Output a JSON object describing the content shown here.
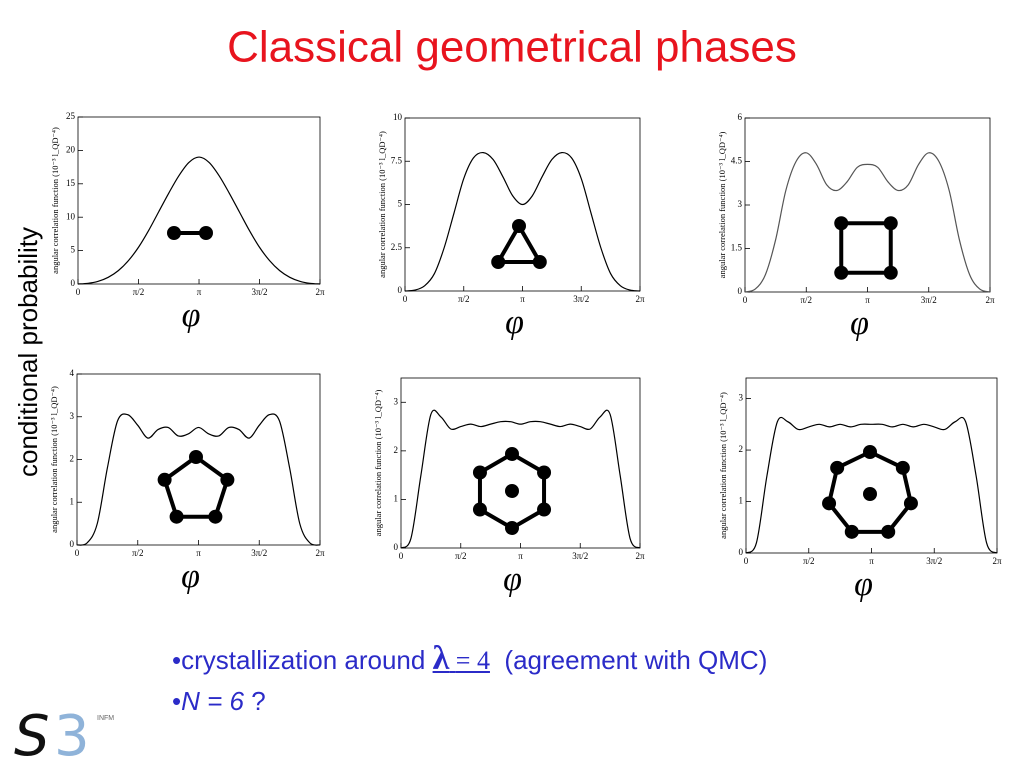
{
  "slide": {
    "title": "Classical geometrical phases",
    "side_label": "conditional probability",
    "bullets": [
      {
        "bullet": "•",
        "text": "crystallization around",
        "lambda": "λ",
        "eq": "= 4",
        "note": "(agreement with QMC)"
      },
      {
        "bullet": "•",
        "text": "N = 6",
        "note": "?"
      }
    ],
    "logo": {
      "s": "S",
      "three": "3",
      "org": "INFM"
    }
  },
  "chart_data": [
    {
      "type": "line",
      "xlabel": "φ",
      "ylabel": "angular correlation function  (10⁻³ l_QD⁻⁴)",
      "x": [
        0,
        0.262,
        0.524,
        0.785,
        1.047,
        1.309,
        1.571,
        1.833,
        2.094,
        2.356,
        2.618,
        2.88,
        3.142,
        3.403,
        3.665,
        3.927,
        4.189,
        4.451,
        4.712,
        4.974,
        5.236,
        5.498,
        5.76,
        6.021,
        6.283
      ],
      "values": [
        0,
        0.1,
        0.4,
        1.0,
        2.0,
        3.5,
        5.5,
        8,
        10.8,
        13.6,
        16.2,
        18.2,
        19,
        18.2,
        16.2,
        13.6,
        10.8,
        8,
        5.5,
        3.5,
        2.0,
        1.0,
        0.4,
        0.1,
        0
      ],
      "color": "#000000",
      "xlim": [
        0,
        6.283
      ],
      "xticks": [
        0,
        {
          "value": 1.571,
          "label": "π/2"
        },
        {
          "value": 3.142,
          "label": "π"
        },
        {
          "value": 4.712,
          "label": "3π/2"
        },
        {
          "value": 6.283,
          "label": "2π"
        }
      ],
      "ylim": [
        0,
        25
      ],
      "yticks": [
        0,
        5,
        10,
        15,
        20,
        25
      ]
    },
    {
      "type": "line",
      "xlabel": "φ",
      "ylabel": "angular correlation function  (10⁻³ l_QD⁻⁴)",
      "x": [
        0,
        0.262,
        0.524,
        0.785,
        1.047,
        1.309,
        1.571,
        1.833,
        2.094,
        2.356,
        2.618,
        2.88,
        3.142,
        3.403,
        3.665,
        3.927,
        4.189,
        4.451,
        4.712,
        4.974,
        5.236,
        5.498,
        5.76,
        6.021,
        6.283
      ],
      "values": [
        0,
        0.05,
        0.3,
        1.0,
        2.5,
        4.5,
        6.5,
        7.7,
        8.0,
        7.6,
        6.6,
        5.5,
        5.0,
        5.5,
        6.6,
        7.6,
        8.0,
        7.7,
        6.5,
        4.5,
        2.5,
        1.0,
        0.3,
        0.05,
        0
      ],
      "color": "#000000",
      "xlim": [
        0,
        6.283
      ],
      "xticks": [
        0,
        {
          "value": 1.571,
          "label": "π/2"
        },
        {
          "value": 3.142,
          "label": "π"
        },
        {
          "value": 4.712,
          "label": "3π/2"
        },
        {
          "value": 6.283,
          "label": "2π"
        }
      ],
      "ylim": [
        0,
        10
      ],
      "yticks": [
        0,
        2.5,
        5,
        7.5,
        10
      ]
    },
    {
      "type": "line",
      "xlabel": "φ",
      "ylabel": "angular correlation function  (10⁻³ l_QD⁻⁴)",
      "x": [
        0,
        0.262,
        0.524,
        0.785,
        1.047,
        1.309,
        1.571,
        1.833,
        2.094,
        2.356,
        2.618,
        2.88,
        3.142,
        3.403,
        3.665,
        3.927,
        4.189,
        4.451,
        4.712,
        4.974,
        5.236,
        5.498,
        5.76,
        6.021,
        6.283
      ],
      "values": [
        0,
        0.1,
        0.6,
        1.8,
        3.5,
        4.5,
        4.8,
        4.4,
        3.7,
        3.5,
        3.8,
        4.3,
        4.4,
        4.3,
        3.8,
        3.5,
        3.7,
        4.4,
        4.8,
        4.5,
        3.5,
        1.8,
        0.6,
        0.1,
        0
      ],
      "color": "#555555",
      "xlim": [
        0,
        6.283
      ],
      "xticks": [
        0,
        {
          "value": 1.571,
          "label": "π/2"
        },
        {
          "value": 3.142,
          "label": "π"
        },
        {
          "value": 4.712,
          "label": "3π/2"
        },
        {
          "value": 6.283,
          "label": "2π"
        }
      ],
      "ylim": [
        0,
        6
      ],
      "yticks": [
        0,
        1.5,
        3,
        4.5,
        6
      ]
    },
    {
      "type": "line",
      "xlabel": "φ",
      "ylabel": "angular correlation function  (10⁻³ l_QD⁻⁴)",
      "x": [
        0,
        0.262,
        0.524,
        0.785,
        1.047,
        1.309,
        1.571,
        1.833,
        2.094,
        2.356,
        2.618,
        2.88,
        3.142,
        3.403,
        3.665,
        3.927,
        4.189,
        4.451,
        4.712,
        4.974,
        5.236,
        5.498,
        5.76,
        6.021,
        6.283
      ],
      "values": [
        0,
        0.05,
        0.5,
        1.8,
        2.9,
        3.05,
        2.8,
        2.5,
        2.7,
        2.75,
        2.55,
        2.6,
        2.75,
        2.6,
        2.55,
        2.75,
        2.7,
        2.5,
        2.8,
        3.05,
        2.9,
        1.8,
        0.5,
        0.05,
        0
      ],
      "color": "#000000",
      "xlim": [
        0,
        6.283
      ],
      "xticks": [
        0,
        {
          "value": 1.571,
          "label": "π/2"
        },
        {
          "value": 3.142,
          "label": "π"
        },
        {
          "value": 4.712,
          "label": "3π/2"
        },
        {
          "value": 6.283,
          "label": "2π"
        }
      ],
      "ylim": [
        0,
        4
      ],
      "yticks": [
        0,
        1,
        2,
        3,
        4
      ]
    },
    {
      "type": "line",
      "xlabel": "φ",
      "ylabel": "angular correlation function  (10⁻³ l_QD⁻⁴)",
      "x": [
        0,
        0.262,
        0.524,
        0.785,
        1.047,
        1.309,
        1.571,
        1.833,
        2.094,
        2.356,
        2.618,
        2.88,
        3.142,
        3.403,
        3.665,
        3.927,
        4.189,
        4.451,
        4.712,
        4.974,
        5.236,
        5.498,
        5.76,
        6.021,
        6.283
      ],
      "values": [
        0,
        0.2,
        1.5,
        2.75,
        2.7,
        2.45,
        2.5,
        2.55,
        2.5,
        2.55,
        2.6,
        2.6,
        2.55,
        2.6,
        2.6,
        2.55,
        2.5,
        2.55,
        2.5,
        2.45,
        2.7,
        2.75,
        1.5,
        0.2,
        0
      ],
      "color": "#000000",
      "xlim": [
        0,
        6.283
      ],
      "xticks": [
        0,
        {
          "value": 1.571,
          "label": "π/2"
        },
        {
          "value": 3.142,
          "label": "π"
        },
        {
          "value": 4.712,
          "label": "3π/2"
        },
        {
          "value": 6.283,
          "label": "2π"
        }
      ],
      "ylim": [
        0,
        3.5
      ],
      "yticks": [
        0,
        1,
        2,
        3
      ]
    },
    {
      "type": "line",
      "xlabel": "φ",
      "ylabel": "angular correlation function  (10⁻³ l_QD⁻⁴)",
      "x": [
        0,
        0.262,
        0.524,
        0.785,
        1.047,
        1.309,
        1.571,
        1.833,
        2.094,
        2.356,
        2.618,
        2.88,
        3.142,
        3.403,
        3.665,
        3.927,
        4.189,
        4.451,
        4.712,
        4.974,
        5.236,
        5.498,
        5.76,
        6.021,
        6.283
      ],
      "values": [
        0,
        0.2,
        1.5,
        2.55,
        2.55,
        2.4,
        2.45,
        2.5,
        2.45,
        2.5,
        2.45,
        2.5,
        2.5,
        2.5,
        2.45,
        2.5,
        2.45,
        2.5,
        2.45,
        2.4,
        2.55,
        2.55,
        1.5,
        0.2,
        0
      ],
      "color": "#000000",
      "xlim": [
        0,
        6.283
      ],
      "xticks": [
        0,
        {
          "value": 1.571,
          "label": "π/2"
        },
        {
          "value": 3.142,
          "label": "π"
        },
        {
          "value": 4.712,
          "label": "3π/2"
        },
        {
          "value": 6.283,
          "label": "2π"
        }
      ],
      "ylim": [
        0,
        3.4
      ],
      "yticks": [
        0,
        1,
        2,
        3
      ]
    }
  ]
}
